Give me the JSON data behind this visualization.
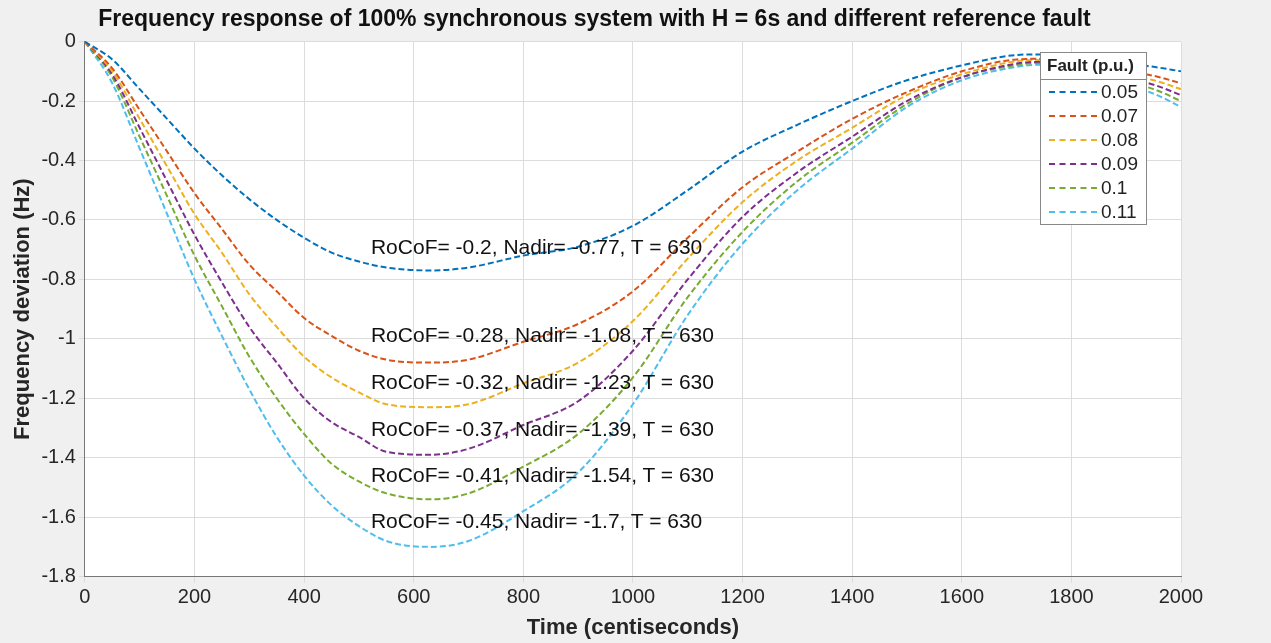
{
  "chart_data": {
    "type": "line",
    "title": "Frequency response of 100% synchronous system with H = 6s and different reference fault",
    "xlabel": "Time (centiseconds)",
    "ylabel": "Frequency deviation (Hz)",
    "legend_title": "Fault (p.u.)",
    "x": [
      0,
      50,
      100,
      150,
      200,
      250,
      300,
      350,
      400,
      450,
      500,
      550,
      630,
      700,
      800,
      900,
      1000,
      1100,
      1200,
      1300,
      1400,
      1500,
      1600,
      1700,
      1740,
      1950,
      2000
    ],
    "series": [
      {
        "name": "0.05",
        "color": "#0072bd",
        "values": [
          0,
          -0.06,
          -0.16,
          -0.26,
          -0.36,
          -0.45,
          -0.53,
          -0.6,
          -0.66,
          -0.71,
          -0.74,
          -0.76,
          -0.77,
          -0.76,
          -0.72,
          -0.69,
          -0.62,
          -0.5,
          -0.37,
          -0.28,
          -0.2,
          -0.13,
          -0.08,
          -0.045,
          -0.043,
          -0.085,
          -0.1
        ]
      },
      {
        "name": "0.07",
        "color": "#d95319",
        "values": [
          0,
          -0.09,
          -0.23,
          -0.37,
          -0.51,
          -0.63,
          -0.75,
          -0.84,
          -0.93,
          -0.99,
          -1.04,
          -1.07,
          -1.08,
          -1.07,
          -1.01,
          -0.95,
          -0.84,
          -0.66,
          -0.49,
          -0.37,
          -0.26,
          -0.17,
          -0.1,
          -0.06,
          -0.058,
          -0.115,
          -0.14
        ]
      },
      {
        "name": "0.08",
        "color": "#edb120",
        "values": [
          0,
          -0.1,
          -0.26,
          -0.42,
          -0.58,
          -0.71,
          -0.85,
          -0.96,
          -1.06,
          -1.13,
          -1.18,
          -1.22,
          -1.23,
          -1.22,
          -1.15,
          -1.08,
          -0.94,
          -0.73,
          -0.54,
          -0.4,
          -0.29,
          -0.18,
          -0.11,
          -0.066,
          -0.062,
          -0.13,
          -0.16
        ]
      },
      {
        "name": "0.09",
        "color": "#7e2f8e",
        "values": [
          0,
          -0.11,
          -0.29,
          -0.47,
          -0.65,
          -0.81,
          -0.96,
          -1.08,
          -1.2,
          -1.28,
          -1.33,
          -1.38,
          -1.39,
          -1.37,
          -1.29,
          -1.21,
          -1.04,
          -0.8,
          -0.59,
          -0.44,
          -0.32,
          -0.2,
          -0.12,
          -0.074,
          -0.068,
          -0.145,
          -0.18
        ]
      },
      {
        "name": "0.1",
        "color": "#77ac30",
        "values": [
          0,
          -0.12,
          -0.32,
          -0.52,
          -0.72,
          -0.89,
          -1.06,
          -1.2,
          -1.32,
          -1.42,
          -1.48,
          -1.52,
          -1.54,
          -1.52,
          -1.43,
          -1.32,
          -1.13,
          -0.86,
          -0.64,
          -0.47,
          -0.34,
          -0.21,
          -0.12,
          -0.079,
          -0.072,
          -0.16,
          -0.2
        ]
      },
      {
        "name": "0.11",
        "color": "#4dbeee",
        "values": [
          0,
          -0.14,
          -0.36,
          -0.58,
          -0.8,
          -0.99,
          -1.17,
          -1.33,
          -1.46,
          -1.56,
          -1.63,
          -1.68,
          -1.7,
          -1.68,
          -1.58,
          -1.45,
          -1.22,
          -0.92,
          -0.68,
          -0.5,
          -0.36,
          -0.22,
          -0.13,
          -0.085,
          -0.078,
          -0.175,
          -0.22
        ]
      }
    ],
    "xlim": [
      0,
      2000
    ],
    "xticks": [
      0,
      200,
      400,
      600,
      800,
      1000,
      1200,
      1400,
      1600,
      1800,
      2000
    ],
    "ylim": [
      -1.8,
      0
    ],
    "yticks": [
      -1.8,
      -1.6,
      -1.4,
      -1.2,
      -1,
      -0.8,
      -0.6,
      -0.4,
      -0.2,
      0
    ],
    "grid": true,
    "legend": "top right",
    "line_style": "dashed",
    "marker": "none",
    "annotations": [
      "RoCoF= -0.2, Nadir= -0.77, T = 630",
      "RoCoF= -0.28, Nadir= -1.08, T = 630",
      "RoCoF= -0.32, Nadir= -1.23, T = 630",
      "RoCoF= -0.37, Nadir= -1.39, T = 630",
      "RoCoF= -0.41, Nadir= -1.54, T = 630",
      "RoCoF= -0.45, Nadir= -1.7, T = 630"
    ]
  }
}
